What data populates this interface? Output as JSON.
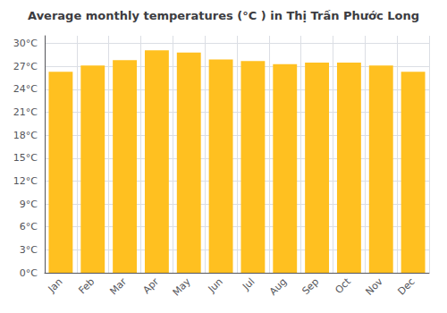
{
  "chart_data": {
    "type": "bar",
    "title": "Average monthly temperatures (°C ) in Thị Trấn Phước Long",
    "categories": [
      "Jan",
      "Feb",
      "Mar",
      "Apr",
      "May",
      "Jun",
      "Jul",
      "Aug",
      "Sep",
      "Oct",
      "Nov",
      "Dec"
    ],
    "values": [
      26.3,
      27.1,
      27.8,
      29.1,
      28.8,
      27.9,
      27.7,
      27.3,
      27.5,
      27.5,
      27.1,
      26.3
    ],
    "color": "#FFC020",
    "ylim": [
      0,
      31
    ],
    "yticks": [
      {
        "value": 0,
        "label": "0°C"
      },
      {
        "value": 3,
        "label": "3°C"
      },
      {
        "value": 6,
        "label": "6°C"
      },
      {
        "value": 9,
        "label": "9°C"
      },
      {
        "value": 12,
        "label": "12°C"
      },
      {
        "value": 15,
        "label": "15°C"
      },
      {
        "value": 18,
        "label": "18°C"
      },
      {
        "value": 21,
        "label": "21°C"
      },
      {
        "value": 24,
        "label": "24°C"
      },
      {
        "value": 27,
        "label": "27°C"
      },
      {
        "value": 30,
        "label": "30°C"
      }
    ],
    "grid": true
  }
}
